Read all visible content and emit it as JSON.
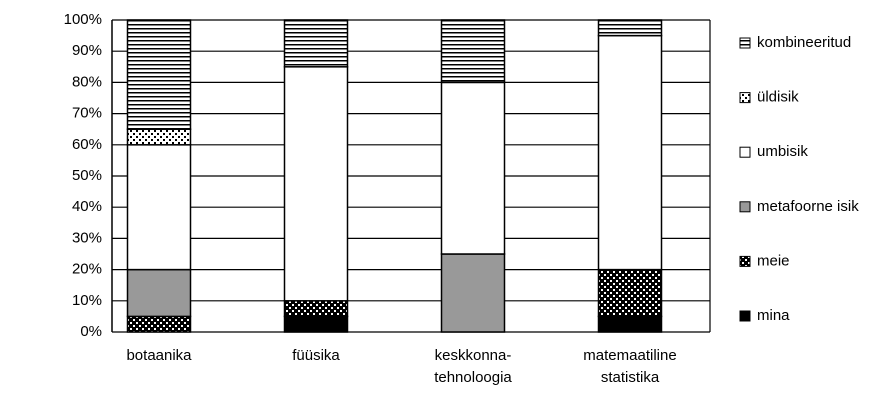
{
  "chart_data": {
    "type": "stacked-bar",
    "categories": [
      [
        "botaanika"
      ],
      [
        "füüsika"
      ],
      [
        "keskkonna-",
        "tehnoloogia"
      ],
      [
        "matemaatiline",
        "statistika"
      ]
    ],
    "series": [
      {
        "name": "mina",
        "color": "#000000",
        "values": [
          0,
          5,
          0,
          5
        ]
      },
      {
        "name": "meie",
        "color": "#000000",
        "pattern": "white-dots",
        "values": [
          5,
          5,
          0,
          15
        ]
      },
      {
        "name": "metafoorne isik",
        "color": "#999999",
        "values": [
          15,
          0,
          25,
          0
        ]
      },
      {
        "name": "umbisik",
        "color": "#ffffff",
        "values": [
          40,
          75,
          55,
          75
        ]
      },
      {
        "name": "üldisik",
        "color": "#ffffff",
        "pattern": "black-dots",
        "values": [
          5,
          0,
          0,
          0
        ]
      },
      {
        "name": "kombineeritud",
        "color": "#ffffff",
        "pattern": "stripes",
        "values": [
          35,
          15,
          20,
          5
        ]
      }
    ],
    "ylim": [
      0,
      100
    ],
    "yticks": [
      {
        "value": 0,
        "label": "0%"
      },
      {
        "value": 10,
        "label": "10%"
      },
      {
        "value": 20,
        "label": "20%"
      },
      {
        "value": 30,
        "label": "30%"
      },
      {
        "value": 40,
        "label": "40%"
      },
      {
        "value": 50,
        "label": "50%"
      },
      {
        "value": 60,
        "label": "60%"
      },
      {
        "value": 70,
        "label": "70%"
      },
      {
        "value": 80,
        "label": "80%"
      },
      {
        "value": 90,
        "label": "90%"
      },
      {
        "value": 100,
        "label": "100%"
      }
    ],
    "grid": true,
    "legend": "right"
  }
}
